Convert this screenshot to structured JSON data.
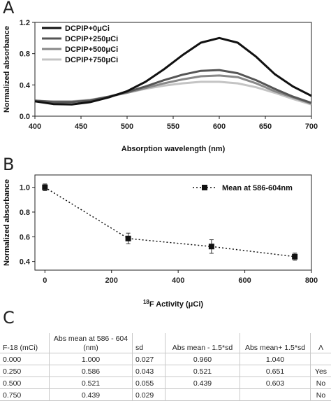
{
  "panels": {
    "a": "A",
    "b": "B",
    "c": "C"
  },
  "chart_data": [
    {
      "type": "line",
      "panel": "A",
      "xlabel": "Absorption wavelength (nm)",
      "ylabel": "Normalized absorbance",
      "xlim": [
        400,
        700
      ],
      "ylim": [
        0,
        1.2
      ],
      "xticks": [
        "400",
        "450",
        "500",
        "550",
        "600",
        "650",
        "700"
      ],
      "yticks": [
        "0.0",
        "0.4",
        "0.8",
        "1.2"
      ],
      "legend_position": "top-left",
      "x": [
        400,
        420,
        440,
        460,
        480,
        500,
        520,
        540,
        560,
        580,
        600,
        620,
        640,
        660,
        680,
        700
      ],
      "series": [
        {
          "name": "DCPIP+0μCi",
          "color": "#111111",
          "values": [
            0.19,
            0.155,
            0.15,
            0.18,
            0.24,
            0.32,
            0.44,
            0.6,
            0.78,
            0.94,
            1.0,
            0.94,
            0.76,
            0.54,
            0.38,
            0.26
          ]
        },
        {
          "name": "DCPIP+250μCi",
          "color": "#555555",
          "values": [
            0.2,
            0.18,
            0.18,
            0.2,
            0.25,
            0.31,
            0.38,
            0.46,
            0.53,
            0.58,
            0.59,
            0.55,
            0.46,
            0.35,
            0.25,
            0.17
          ]
        },
        {
          "name": "DCPIP+500μCi",
          "color": "#888888",
          "values": [
            0.2,
            0.185,
            0.185,
            0.205,
            0.25,
            0.3,
            0.36,
            0.42,
            0.47,
            0.51,
            0.52,
            0.5,
            0.42,
            0.32,
            0.24,
            0.16
          ]
        },
        {
          "name": "DCPIP+750μCi",
          "color": "#c4c4c4",
          "values": [
            0.19,
            0.19,
            0.19,
            0.21,
            0.25,
            0.3,
            0.35,
            0.39,
            0.42,
            0.44,
            0.44,
            0.42,
            0.37,
            0.3,
            0.22,
            0.15
          ]
        }
      ]
    },
    {
      "type": "scatter",
      "panel": "B",
      "xlabel_sup": "18",
      "xlabel_main": "F Activity (μCi)",
      "ylabel": "Normalized absorbance",
      "xlim": [
        -30,
        800
      ],
      "ylim": [
        0.33,
        1.1
      ],
      "xticks": [
        "0",
        "200",
        "400",
        "600",
        "800"
      ],
      "yticks": [
        "0.4",
        "0.6",
        "0.8",
        "1.0"
      ],
      "legend_position": "top-right",
      "series": [
        {
          "name": "Mean at 586-604nm",
          "color": "#111111",
          "x": [
            0,
            250,
            500,
            750
          ],
          "values": [
            1.0,
            0.586,
            0.521,
            0.439
          ],
          "sd": [
            0.027,
            0.043,
            0.055,
            0.029
          ]
        }
      ]
    }
  ],
  "table": {
    "headers": [
      "F-18 (mCi)",
      "Abs mean at 586 - 604 (nm)",
      "sd",
      "Abs mean - 1.5*sd",
      "Abs mean+ 1.5*sd",
      "Λ"
    ],
    "rows": [
      [
        "0.000",
        "1.000",
        "0.027",
        "0.960",
        "1.040",
        ""
      ],
      [
        "0.250",
        "0.586",
        "0.043",
        "0.521",
        "0.651",
        "Yes"
      ],
      [
        "0.500",
        "0.521",
        "0.055",
        "0.439",
        "0.603",
        "No"
      ],
      [
        "0.750",
        "0.439",
        "0.029",
        "",
        "",
        "No"
      ]
    ]
  }
}
